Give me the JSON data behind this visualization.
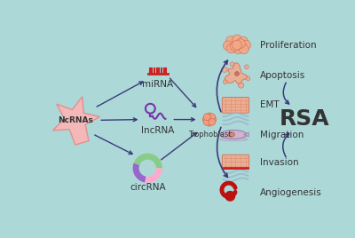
{
  "bg_color": "#add8d8",
  "arrow_color": "#3a3a7a",
  "ncrna_label": "NcRNAs",
  "mirna_label": "miRNA",
  "lncrna_label": "lncRNA",
  "circrna_label": "circRNA",
  "trophoblast_label": "Trophoblast",
  "rsa_label": "RSA",
  "functions": [
    "Proliferation",
    "Apoptosis",
    "EMT",
    "Migration",
    "Invasion",
    "Angiogenesis"
  ],
  "star_color": "#f5b8b8",
  "star_edge": "#e09090",
  "mirna_color": "#cc2222",
  "lncrna_color": "#7733aa",
  "circrna_color_purple": "#9966cc",
  "circrna_color_green": "#88cc88",
  "circrna_color_pink": "#ffaacc",
  "trophoblast_color": "#f4a080",
  "cell_color": "#f4a888",
  "cell_edge": "#d07055",
  "angio_color": "#bb1111",
  "migration_body": "#d4b0d0",
  "migration_edge": "#9977aa",
  "migration_nucleus": "#cc8866",
  "text_color": "#333333",
  "label_fontsize": 7.5,
  "rsa_fontsize": 18
}
